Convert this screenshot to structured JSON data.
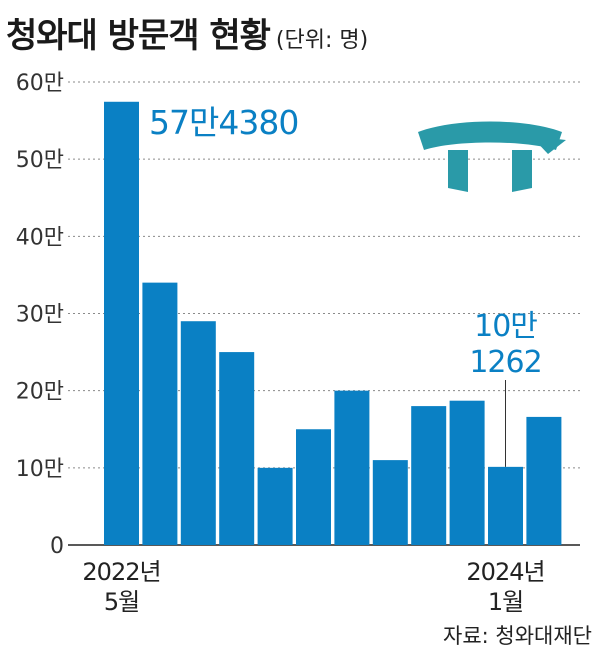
{
  "header": {
    "title": "청와대 방문객 현황",
    "unit": "(단위: 명)"
  },
  "footer": {
    "source": "자료: 청와대재단"
  },
  "colors": {
    "bar": "#0a80c4",
    "label": "#0a80c4",
    "grid": "#8a8a8a",
    "logo": "#2a9aa8"
  },
  "icon": "cheongwadae-roof-icon",
  "chart_data": {
    "type": "bar",
    "ylim": [
      0,
      600000
    ],
    "yticks": [
      {
        "value": 0,
        "label": "0"
      },
      {
        "value": 100000,
        "label": "10만"
      },
      {
        "value": 200000,
        "label": "20만"
      },
      {
        "value": 300000,
        "label": "30만"
      },
      {
        "value": 400000,
        "label": "40만"
      },
      {
        "value": 500000,
        "label": "50만"
      },
      {
        "value": 600000,
        "label": "60만"
      }
    ],
    "grid": true,
    "values": [
      574380,
      340000,
      290000,
      250000,
      100000,
      150000,
      200000,
      110000,
      180000,
      187000,
      101262,
      166000
    ],
    "x_labels": [
      {
        "index": 0,
        "lines": [
          "2022년",
          "5월"
        ]
      },
      {
        "index": 10,
        "lines": [
          "2024년",
          "1월"
        ]
      }
    ],
    "annotations": [
      {
        "index": 0,
        "lines": [
          "57만4380"
        ]
      },
      {
        "index": 10,
        "lines": [
          "10만",
          "1262"
        ]
      }
    ]
  }
}
